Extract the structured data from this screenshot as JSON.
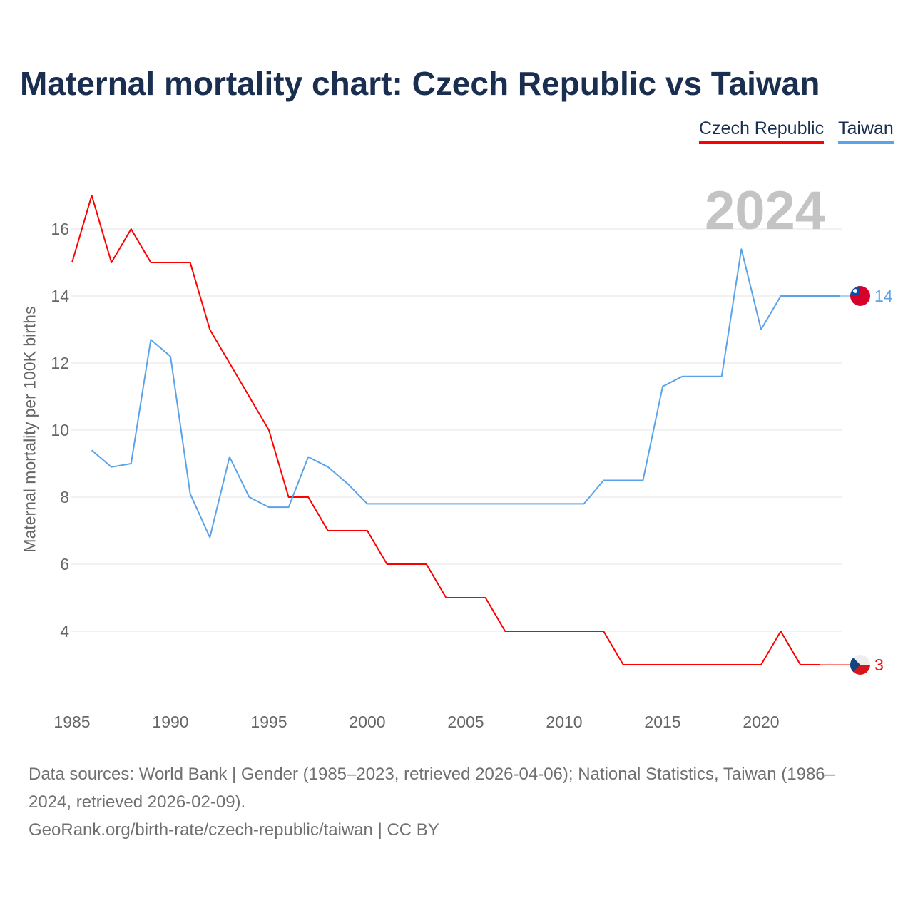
{
  "chart_data": {
    "type": "line",
    "title": "Maternal mortality chart: Czech Republic vs Taiwan",
    "ylabel": "Maternal mortality per 100K births",
    "xlabel": "",
    "year_label": "2024",
    "xlim": [
      1985,
      2024
    ],
    "ylim": [
      2,
      17.5
    ],
    "xticks": [
      1985,
      1990,
      1995,
      2000,
      2005,
      2010,
      2015,
      2020
    ],
    "yticks": [
      4,
      6,
      8,
      10,
      12,
      14,
      16
    ],
    "grid": true,
    "legend_position": "top-right",
    "series": [
      {
        "name": "Czech Republic",
        "color": "#ff0000",
        "end_label": "3",
        "x": [
          1985,
          1986,
          1987,
          1988,
          1989,
          1990,
          1991,
          1992,
          1993,
          1994,
          1995,
          1996,
          1997,
          1998,
          1999,
          2000,
          2001,
          2002,
          2003,
          2004,
          2005,
          2006,
          2007,
          2008,
          2009,
          2010,
          2011,
          2012,
          2013,
          2014,
          2015,
          2016,
          2017,
          2018,
          2019,
          2020,
          2021,
          2022,
          2023
        ],
        "values": [
          15,
          17,
          15,
          16,
          15,
          15,
          15,
          13,
          12,
          11,
          10,
          8,
          8,
          7,
          7,
          7,
          6,
          6,
          6,
          5,
          5,
          5,
          4,
          4,
          4,
          4,
          4,
          4,
          3,
          3,
          3,
          3,
          3,
          3,
          3,
          3,
          4,
          3,
          3
        ]
      },
      {
        "name": "Taiwan",
        "color": "#5ba3e8",
        "end_label": "14",
        "x": [
          1986,
          1987,
          1988,
          1989,
          1990,
          1991,
          1992,
          1993,
          1994,
          1995,
          1996,
          1997,
          1998,
          1999,
          2000,
          2001,
          2002,
          2003,
          2004,
          2005,
          2006,
          2007,
          2008,
          2009,
          2010,
          2011,
          2012,
          2013,
          2014,
          2015,
          2016,
          2017,
          2018,
          2019,
          2020,
          2021,
          2022,
          2023,
          2024
        ],
        "values": [
          9.4,
          8.9,
          9.0,
          12.7,
          12.2,
          8.1,
          6.8,
          9.2,
          8.0,
          7.7,
          7.7,
          9.2,
          8.9,
          8.4,
          7.8,
          7.8,
          7.8,
          7.8,
          7.8,
          7.8,
          7.8,
          7.8,
          7.8,
          7.8,
          7.8,
          7.8,
          8.5,
          8.5,
          8.5,
          11.3,
          11.6,
          11.6,
          11.6,
          15.4,
          13.0,
          14,
          14,
          14,
          14
        ]
      }
    ]
  },
  "footer": {
    "sources": "Data sources: World Bank | Gender (1985–2023, retrieved 2026-04-06); National Statistics, Taiwan (1986–2024, retrieved 2026-02-09).",
    "credit": "GeoRank.org/birth-rate/czech-republic/taiwan | CC BY"
  }
}
